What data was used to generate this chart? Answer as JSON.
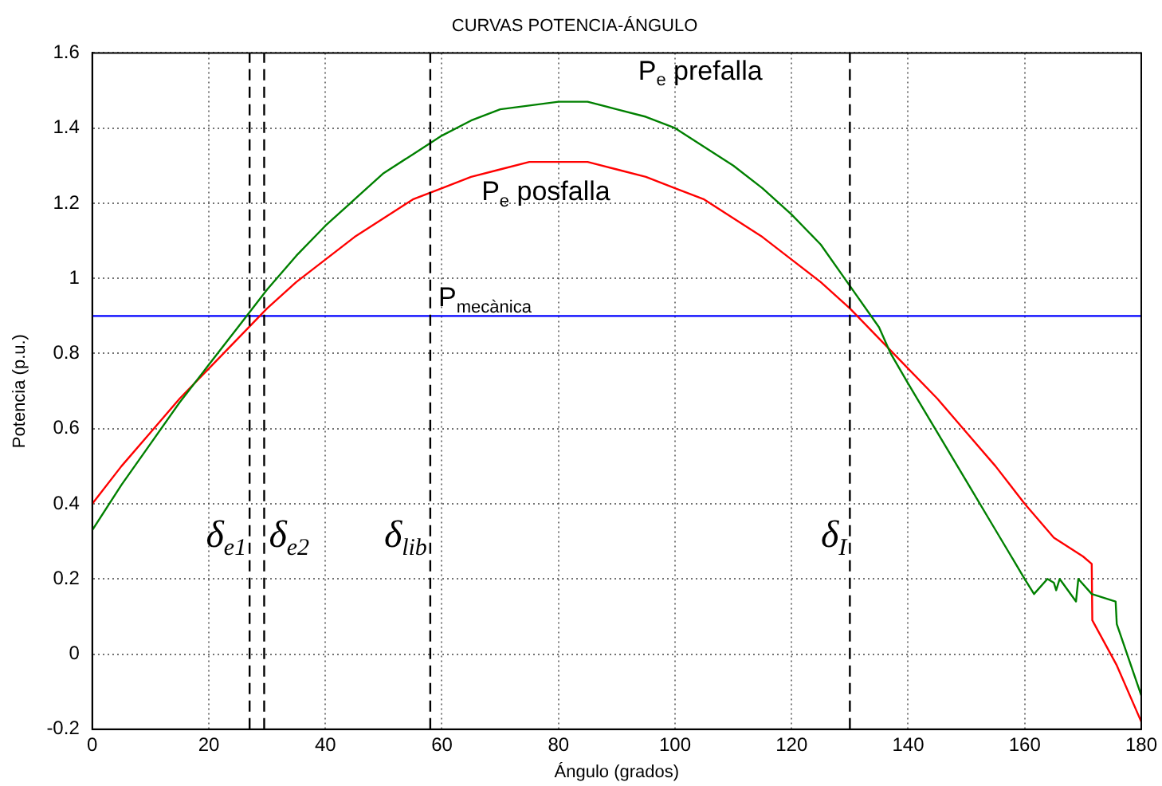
{
  "chart_data": {
    "type": "line",
    "title": "CURVAS POTENCIA-ÁNGULO",
    "xlabel": "Ángulo (grados)",
    "ylabel": "Potencia (p.u.)",
    "series": [
      {
        "name": "P$_{e}$ prefalla",
        "color": "#008000",
        "x": [
          0,
          5,
          10,
          15,
          20,
          25,
          30,
          35,
          40,
          45,
          50,
          55,
          60,
          65,
          70,
          75,
          80,
          85,
          90,
          95,
          100,
          105,
          110,
          115,
          120,
          125,
          130,
          135,
          137,
          140,
          145,
          150,
          155,
          160,
          161.6,
          163.9,
          165,
          165.4,
          166,
          168.8,
          169.2,
          171.5,
          175.6,
          175.8,
          180
        ],
        "values": [
          0.33,
          0.45,
          0.56,
          0.67,
          0.77,
          0.87,
          0.97,
          1.06,
          1.14,
          1.21,
          1.28,
          1.33,
          1.38,
          1.42,
          1.45,
          1.46,
          1.47,
          1.47,
          1.45,
          1.43,
          1.4,
          1.35,
          1.3,
          1.24,
          1.17,
          1.09,
          0.98,
          0.87,
          0.8,
          0.72,
          0.59,
          0.46,
          0.33,
          0.2,
          0.16,
          0.2,
          0.19,
          0.17,
          0.2,
          0.14,
          0.2,
          0.16,
          0.14,
          0.08,
          -0.11
        ]
      },
      {
        "name": "P$_{e}$ posfalla",
        "color": "#ff0000",
        "x": [
          0,
          5,
          10,
          15,
          20,
          25,
          30,
          35,
          40,
          45,
          50,
          55,
          60,
          65,
          70,
          75,
          80,
          85,
          90,
          95,
          100,
          105,
          110,
          115,
          120,
          125,
          130,
          135,
          140,
          145,
          150,
          155,
          160,
          165,
          170,
          171.5,
          171.6,
          175.8,
          180
        ],
        "values": [
          0.4,
          0.5,
          0.59,
          0.68,
          0.76,
          0.84,
          0.92,
          0.99,
          1.05,
          1.11,
          1.16,
          1.21,
          1.24,
          1.27,
          1.29,
          1.31,
          1.31,
          1.31,
          1.29,
          1.27,
          1.24,
          1.21,
          1.16,
          1.11,
          1.05,
          0.99,
          0.92,
          0.84,
          0.76,
          0.68,
          0.59,
          0.5,
          0.4,
          0.31,
          0.26,
          0.24,
          0.09,
          -0.03,
          -0.18
        ]
      },
      {
        "name": "P$_{mecànica}$",
        "color": "#0000ff",
        "x": [
          0,
          180
        ],
        "values": [
          0.9,
          0.9
        ]
      }
    ],
    "ref_lines": [
      {
        "axis": "x",
        "value": 27,
        "label": "δ$_{e1}$",
        "color": "#000000",
        "line_style": "dashed"
      },
      {
        "axis": "x",
        "value": 29.5,
        "label": "δ$_{e2}$",
        "color": "#000000",
        "line_style": "dashed"
      },
      {
        "axis": "x",
        "value": 58,
        "label": "δ$_{lib}$",
        "color": "#000000",
        "line_style": "dashed"
      },
      {
        "axis": "x",
        "value": 130,
        "label": "δ$_{I}$",
        "color": "#000000",
        "line_style": "dashed"
      }
    ],
    "xlim": [
      0,
      180
    ],
    "xticks": [
      0,
      20,
      40,
      60,
      80,
      100,
      120,
      140,
      160,
      180
    ],
    "ylim": [
      -0.2,
      1.6
    ],
    "yticks": [
      -0.2,
      0,
      0.2,
      0.4,
      0.6,
      0.8,
      1,
      1.2,
      1.4,
      1.6
    ],
    "grid": true,
    "legend": false,
    "marker": "none",
    "line_style": "solid"
  }
}
